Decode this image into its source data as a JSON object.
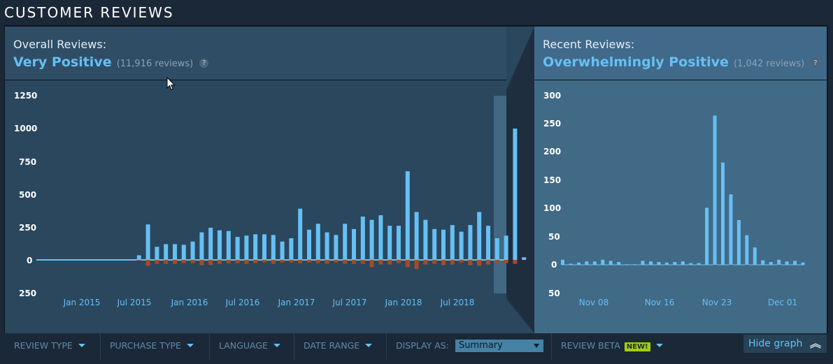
{
  "section_title": "CUSTOMER REVIEWS",
  "overall": {
    "label": "Overall Reviews:",
    "summary": "Very Positive",
    "count": "(11,916 reviews)"
  },
  "recent": {
    "label": "Recent Reviews:",
    "summary": "Overwhelmingly Positive",
    "count": "(1,042 reviews)"
  },
  "help_glyph": "?",
  "colors": {
    "positive": "#66c0f4",
    "negative": "#a34c25",
    "accent": "#66c0f4",
    "new_badge": "#a4d007"
  },
  "chart_data": [
    {
      "type": "bar",
      "ylabel_ticks": [
        "1250",
        "1000",
        "750",
        "500",
        "250",
        "0",
        "250"
      ],
      "ylim": [
        -250,
        1250
      ],
      "xtick_labels": [
        "Jan 2015",
        "Jul 2015",
        "Jan 2016",
        "Jul 2016",
        "Jan 2017",
        "Jul 2017",
        "Jan 2018",
        "Jul 2018"
      ],
      "series": [
        {
          "values": [
            0,
            0,
            0,
            0,
            0,
            0,
            0,
            0,
            0,
            0,
            0,
            0,
            0,
            0,
            0,
            0,
            0,
            0,
            35,
            270,
            100,
            120,
            120,
            115,
            140,
            210,
            245,
            225,
            220,
            175,
            185,
            195,
            195,
            190,
            140,
            165,
            390,
            230,
            275,
            210,
            190,
            275,
            235,
            330,
            305,
            340,
            260,
            260,
            675,
            365,
            305,
            235,
            230,
            265,
            215,
            265,
            365,
            260,
            165,
            185,
            1000,
            20
          ]
        },
        {
          "values": [
            0,
            0,
            0,
            0,
            0,
            0,
            0,
            0,
            0,
            0,
            0,
            0,
            0,
            0,
            0,
            0,
            0,
            0,
            -5,
            -45,
            -30,
            -30,
            -30,
            -25,
            -25,
            -40,
            -40,
            -30,
            -25,
            -25,
            -30,
            -25,
            -20,
            -30,
            -20,
            -20,
            -25,
            -20,
            -25,
            -30,
            -20,
            -30,
            -30,
            -30,
            -55,
            -35,
            -35,
            -25,
            -55,
            -70,
            -35,
            -30,
            -40,
            -35,
            -20,
            -40,
            -45,
            -35,
            -20,
            -25,
            -30,
            0
          ]
        }
      ]
    },
    {
      "type": "bar",
      "ylabel_ticks": [
        "300",
        "250",
        "200",
        "150",
        "100",
        "50",
        "0",
        "50"
      ],
      "ylim": [
        -50,
        300
      ],
      "xtick_labels": [
        "Nov 08",
        "Nov 16",
        "Nov 23",
        "Dec 01"
      ],
      "series": [
        {
          "values": [
            9,
            2,
            4,
            6,
            6,
            9,
            7,
            5,
            1,
            1,
            7,
            6,
            5,
            4,
            5,
            6,
            3,
            3,
            102,
            267,
            183,
            126,
            80,
            53,
            31,
            8,
            5,
            9,
            6,
            7,
            4
          ]
        },
        {
          "values": [
            0,
            0,
            0,
            0,
            0,
            0,
            0,
            0,
            0,
            0,
            0,
            0,
            0,
            0,
            0,
            0,
            0,
            0,
            0,
            -1,
            0,
            -1,
            0,
            -1,
            0,
            0,
            0,
            -1,
            0,
            0,
            0
          ]
        }
      ]
    }
  ],
  "footer": {
    "review_type": "REVIEW TYPE",
    "purchase_type": "PURCHASE TYPE",
    "language": "LANGUAGE",
    "date_range": "DATE RANGE",
    "display_as_label": "DISPLAY AS:",
    "display_as_value": "Summary",
    "review_beta": "REVIEW BETA",
    "new_badge": "NEW!",
    "hide_graph": "Hide graph"
  }
}
